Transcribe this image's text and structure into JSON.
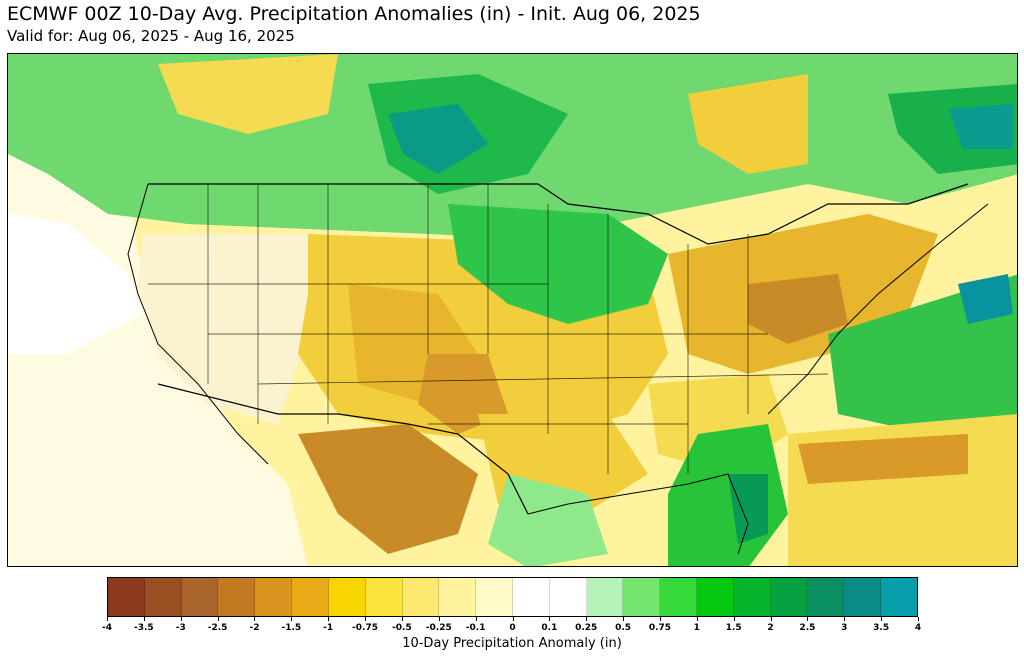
{
  "header": {
    "title": "ECMWF 00Z 10-Day Avg. Precipitation Anomalies (in) - Init. Aug 06, 2025",
    "subtitle": "Valid for: Aug 06, 2025 - Aug 16, 2025"
  },
  "colorbar": {
    "label": "10-Day Precipitation Anomaly (in)",
    "tick_labels": [
      "-4",
      "-3.5",
      "-3",
      "-2.5",
      "-2",
      "-1.5",
      "-1",
      "-0.75",
      "-0.5",
      "-0.25",
      "-0.1",
      "0",
      "0.1",
      "0.25",
      "0.5",
      "0.75",
      "1",
      "1.5",
      "2",
      "2.5",
      "3",
      "3.5",
      "4"
    ],
    "colors": [
      "#8b3a1d",
      "#9a4f22",
      "#a9652a",
      "#c27a22",
      "#d9931f",
      "#e8ab17",
      "#f8d400",
      "#fbe23c",
      "#fde970",
      "#fff49d",
      "#fffac8",
      "#ffffff",
      "#ffffff",
      "#b6f3b6",
      "#74e56d",
      "#35d93a",
      "#05c80f",
      "#06b32a",
      "#08a140",
      "#098f60",
      "#0b8b88",
      "#07a0aa",
      "#00b3c9"
    ]
  },
  "map": {
    "region": "CONUS",
    "colors": {
      "land_dry": "#f6d84a",
      "land_mid": "#e6b52c",
      "land_very_dry": "#c88a26",
      "neutral": "#ffffff",
      "light_dry": "#fff6a9",
      "wet_light": "#8fe88a",
      "wet_green": "#27c43a",
      "wet_dark": "#079a54",
      "wet_teal": "#09939e",
      "boundary": "#000000"
    }
  }
}
